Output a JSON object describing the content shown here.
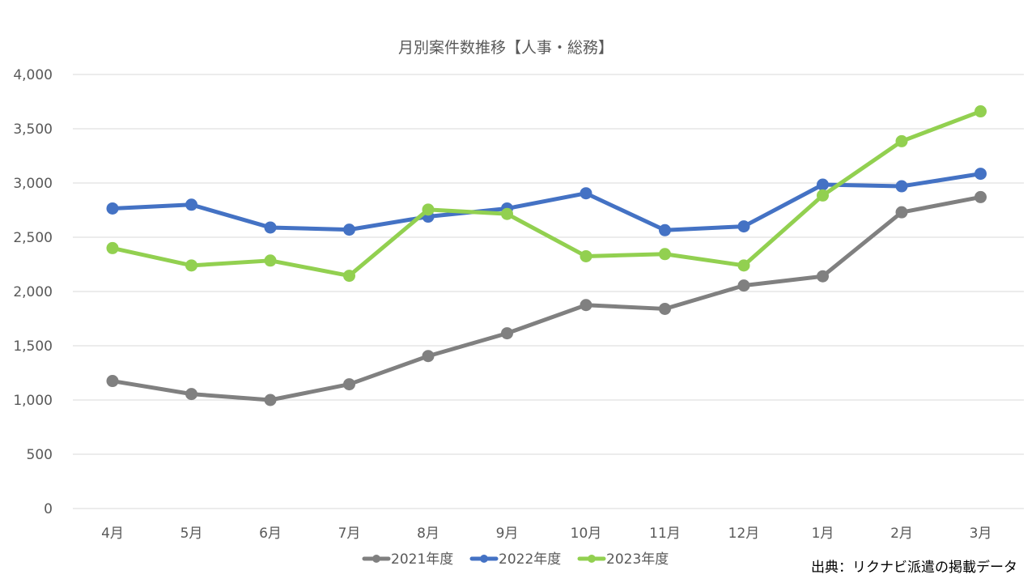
{
  "chart_data": {
    "type": "line",
    "title": "月別案件数推移【人事・総務】",
    "categories": [
      "4月",
      "5月",
      "6月",
      "7月",
      "8月",
      "9月",
      "10月",
      "11月",
      "12月",
      "1月",
      "2月",
      "3月"
    ],
    "ylim": [
      0,
      4000
    ],
    "y_ticks": [
      "0",
      "500",
      "1,000",
      "1,500",
      "2,000",
      "2,500",
      "3,000",
      "3,500",
      "4,000"
    ],
    "grid": true,
    "legend_position": "bottom",
    "series": [
      {
        "name": "2021年度",
        "color": "#808080",
        "values": [
          1175,
          1055,
          1000,
          1145,
          1405,
          1615,
          1875,
          1840,
          2055,
          2140,
          2730,
          2870
        ]
      },
      {
        "name": "2022年度",
        "color": "#4472C4",
        "values": [
          2765,
          2800,
          2590,
          2570,
          2690,
          2765,
          2905,
          2565,
          2600,
          2985,
          2970,
          3085
        ]
      },
      {
        "name": "2023年度",
        "color": "#92D050",
        "values": [
          2400,
          2240,
          2285,
          2145,
          2755,
          2715,
          2325,
          2345,
          2240,
          2885,
          3385,
          3660
        ]
      }
    ],
    "source_note": "出典：リクナビ派遣の掲載データ"
  }
}
